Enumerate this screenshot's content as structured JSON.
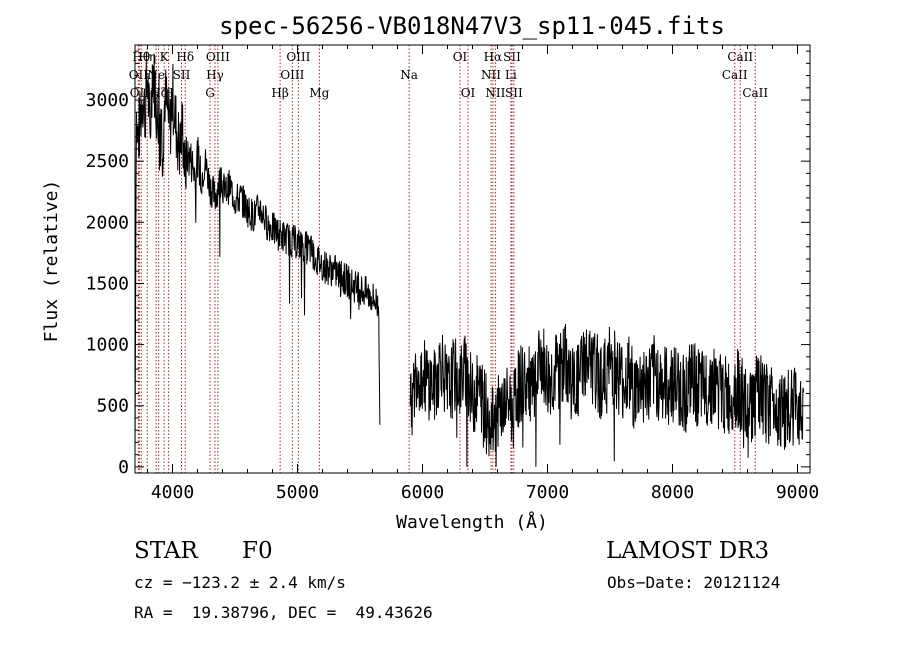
{
  "chart_data": {
    "type": "line",
    "title": "spec-56256-VB018N47V3_sp11-045.fits",
    "xlabel": "Wavelength (Å)",
    "ylabel": "Flux (relative)",
    "xlim": [
      3700,
      9100
    ],
    "ylim": [
      -50,
      3450
    ],
    "xticks": [
      4000,
      5000,
      6000,
      7000,
      8000,
      9000
    ],
    "xtick_labels": [
      "4000",
      "5000",
      "6000",
      "7000",
      "8000",
      "9000"
    ],
    "yticks": [
      0,
      500,
      1000,
      1500,
      2000,
      2500,
      3000
    ],
    "ytick_labels": [
      "0",
      "500",
      "1000",
      "1500",
      "2000",
      "2500",
      "3000"
    ],
    "line_color": "#000000",
    "marker_color": "#a52a2a",
    "gaps": [
      [
        5660,
        5900
      ]
    ],
    "series": [
      {
        "name": "flux",
        "x": [
          3700,
          3710,
          3720,
          3740,
          3760,
          3780,
          3800,
          3820,
          3840,
          3860,
          3880,
          3900,
          3920,
          3940,
          3960,
          3980,
          4000,
          4020,
          4040,
          4060,
          4080,
          4100,
          4120,
          4150,
          4180,
          4200,
          4230,
          4260,
          4300,
          4340,
          4380,
          4420,
          4460,
          4500,
          4550,
          4600,
          4650,
          4700,
          4750,
          4800,
          4850,
          4900,
          4950,
          5000,
          5050,
          5100,
          5150,
          5200,
          5250,
          5300,
          5350,
          5400,
          5450,
          5500,
          5550,
          5600,
          5630,
          5650,
          5660,
          5900,
          5920,
          5950,
          6000,
          6050,
          6100,
          6150,
          6200,
          6250,
          6300,
          6350,
          6400,
          6450,
          6500,
          6550,
          6563,
          6600,
          6650,
          6700,
          6720,
          6750,
          6800,
          6850,
          6900,
          6950,
          7000,
          7050,
          7100,
          7150,
          7200,
          7250,
          7300,
          7350,
          7400,
          7450,
          7500,
          7550,
          7600,
          7650,
          7700,
          7750,
          7800,
          7850,
          7900,
          7950,
          8000,
          8050,
          8100,
          8150,
          8200,
          8250,
          8300,
          8350,
          8400,
          8450,
          8500,
          8550,
          8600,
          8650,
          8700,
          8750,
          8800,
          8850,
          8900,
          8950,
          9000,
          9050
        ],
        "y": [
          100,
          2900,
          2650,
          2800,
          3050,
          2900,
          3200,
          2700,
          3300,
          3100,
          2800,
          3150,
          2600,
          3050,
          2900,
          2750,
          3050,
          2850,
          2700,
          2600,
          2800,
          2400,
          2550,
          2500,
          2400,
          2550,
          2350,
          2500,
          2300,
          2200,
          2350,
          2250,
          2300,
          2180,
          2200,
          2100,
          2050,
          2120,
          2000,
          1950,
          1900,
          1880,
          1850,
          1830,
          1800,
          1780,
          1700,
          1650,
          1620,
          1600,
          1550,
          1520,
          1480,
          1450,
          1420,
          1380,
          1350,
          1300,
          250,
          600,
          500,
          800,
          750,
          700,
          650,
          900,
          600,
          750,
          700,
          800,
          550,
          650,
          500,
          400,
          350,
          450,
          500,
          550,
          400,
          600,
          700,
          650,
          600,
          900,
          700,
          750,
          800,
          850,
          650,
          700,
          900,
          800,
          750,
          700,
          850,
          800,
          700,
          750,
          600,
          700,
          650,
          750,
          700,
          650,
          700,
          650,
          600,
          700,
          650,
          600,
          700,
          650,
          600,
          550,
          650,
          600,
          400,
          550,
          600,
          500,
          550,
          500,
          450,
          500,
          500,
          550
        ],
        "noise": [
          0,
          300,
          300,
          300,
          300,
          300,
          300,
          300,
          300,
          300,
          300,
          300,
          300,
          300,
          300,
          300,
          300,
          300,
          300,
          300,
          300,
          300,
          180,
          180,
          180,
          180,
          150,
          150,
          150,
          150,
          140,
          140,
          140,
          140,
          140,
          140,
          140,
          140,
          140,
          140,
          140,
          140,
          140,
          140,
          140,
          140,
          140,
          140,
          140,
          140,
          140,
          140,
          140,
          140,
          140,
          140,
          140,
          140,
          0,
          150,
          300,
          320,
          320,
          320,
          320,
          320,
          320,
          320,
          320,
          320,
          320,
          320,
          320,
          300,
          300,
          300,
          300,
          300,
          300,
          320,
          340,
          340,
          340,
          340,
          340,
          340,
          340,
          340,
          340,
          340,
          340,
          340,
          340,
          340,
          340,
          340,
          340,
          340,
          340,
          340,
          340,
          340,
          340,
          340,
          340,
          340,
          340,
          340,
          340,
          340,
          340,
          340,
          340,
          340,
          340,
          340,
          340,
          340,
          340,
          340,
          340,
          340,
          340,
          340,
          340,
          340
        ]
      }
    ],
    "line_markers": [
      {
        "wavelength": 3727,
        "label": "OII",
        "row": 1
      },
      {
        "wavelength": 3735,
        "label": "OII",
        "row": 2
      },
      {
        "wavelength": 3750,
        "label": "Hθ",
        "row": 0
      },
      {
        "wavelength": 3798,
        "label": "Hη",
        "row": 0
      },
      {
        "wavelength": 3869,
        "label": "Ne",
        "row": 1
      },
      {
        "wavelength": 3889,
        "label": "Hζ",
        "row": 2
      },
      {
        "wavelength": 3933,
        "label": "K",
        "row": 0
      },
      {
        "wavelength": 3969,
        "label": "H",
        "row": 2
      },
      {
        "wavelength": 4072,
        "label": "SII",
        "row": 1
      },
      {
        "wavelength": 4102,
        "label": "Hδ",
        "row": 0
      },
      {
        "wavelength": 4300,
        "label": "G",
        "row": 2
      },
      {
        "wavelength": 4340,
        "label": "Hγ",
        "row": 1
      },
      {
        "wavelength": 4363,
        "label": "OIII",
        "row": 0
      },
      {
        "wavelength": 4861,
        "label": "Hβ",
        "row": 2
      },
      {
        "wavelength": 4959,
        "label": "OIII",
        "row": 1
      },
      {
        "wavelength": 5007,
        "label": "OIII",
        "row": 0
      },
      {
        "wavelength": 5175,
        "label": "Mg",
        "row": 2
      },
      {
        "wavelength": 5893,
        "label": "Na",
        "row": 1
      },
      {
        "wavelength": 6300,
        "label": "OI",
        "row": 0
      },
      {
        "wavelength": 6364,
        "label": "OI",
        "row": 2
      },
      {
        "wavelength": 6548,
        "label": "NII",
        "row": 1
      },
      {
        "wavelength": 6563,
        "label": "Hα",
        "row": 0
      },
      {
        "wavelength": 6583,
        "label": "NII",
        "row": 2
      },
      {
        "wavelength": 6707,
        "label": "Li",
        "row": 1
      },
      {
        "wavelength": 6716,
        "label": "SII",
        "row": 0
      },
      {
        "wavelength": 6731,
        "label": "SII",
        "row": 2
      },
      {
        "wavelength": 8498,
        "label": "CaII",
        "row": 1
      },
      {
        "wavelength": 8542,
        "label": "CaII",
        "row": 0
      },
      {
        "wavelength": 8662,
        "label": "CaII",
        "row": 2
      }
    ]
  },
  "info": {
    "object_class": "STAR",
    "subclass": "F0",
    "survey": "LAMOST DR3",
    "redshift": "cz = −123.2 ± 2.4 km/s",
    "obs_date": "Obs−Date: 20121124",
    "coords": "RA =  19.38796, DEC =  49.43626"
  }
}
